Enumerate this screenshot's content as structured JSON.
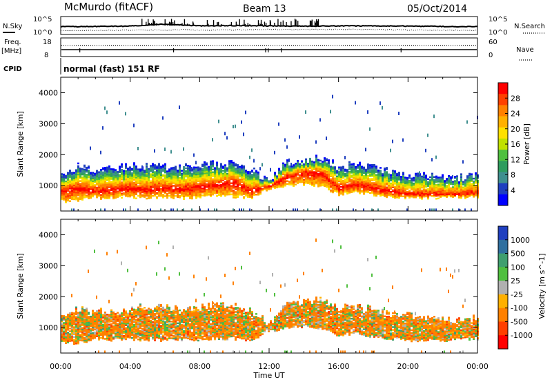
{
  "header": {
    "station": "McMurdo (fitACF)",
    "beam": "Beam 13",
    "date": "05/Oct/2014"
  },
  "noise_panel": {
    "left_label": "N.Sky",
    "right_label": "N.Search",
    "left_ticks": [
      "10^5",
      "10^0"
    ],
    "right_ticks": [
      "10^5",
      "10^0"
    ]
  },
  "freq_panel": {
    "left_label_1": "Freq.",
    "left_label_2": "[MHz]",
    "right_label": "Nave",
    "left_ticks": [
      "18",
      "8"
    ],
    "right_ticks": [
      "60",
      "0"
    ]
  },
  "cpid": {
    "label": "CPID",
    "value": "normal (fast) 151 RF"
  },
  "power_panel": {
    "ylabel": "Slant Range [km]",
    "cbar_label": "Power [dB]",
    "cbar_ticks": [
      "28",
      "24",
      "20",
      "16",
      "12",
      "8",
      "4"
    ],
    "cbar_colors": [
      "#ff0000",
      "#ff4000",
      "#ff8000",
      "#ffb000",
      "#ffe000",
      "#c0e000",
      "#4fbf3f",
      "#2e9c5e",
      "#3f8f8f",
      "#1f3fbf",
      "#0000ff"
    ]
  },
  "velocity_panel": {
    "ylabel": "Slant Range [km]",
    "cbar_label": "Velocity [m s^-1]",
    "cbar_ticks": [
      "1000",
      "500",
      "100",
      "25",
      "-25",
      "-100",
      "-500",
      "-1000"
    ],
    "cbar_colors": [
      "#1f3fbf",
      "#2f6f9f",
      "#3f9f6f",
      "#4fbf3f",
      "#b0b0b0",
      "#ffb000",
      "#ff8000",
      "#ff4000",
      "#ff0000"
    ]
  },
  "chart_data": [
    {
      "type": "line",
      "title": "McMurdo (fitACF)",
      "panel": "noise",
      "x": [
        0,
        2,
        4,
        5,
        6,
        7,
        8,
        10,
        12,
        14,
        16,
        18,
        20,
        22,
        24
      ],
      "series": [
        {
          "values": [
            2.2,
            2.3,
            2.4,
            2.8,
            3.1,
            2.8,
            2.5,
            2.6,
            2.5,
            2.4,
            2.5,
            2.5,
            2.4,
            2.3,
            2.2
          ]
        },
        {
          "values": [
            0.8,
            0.9,
            1.0,
            1.1,
            1.0,
            1.2,
            1.0,
            1.1,
            1.3,
            1.2,
            1.3,
            1.2,
            1.1,
            1.0,
            0.9
          ]
        }
      ],
      "ylim": [
        0,
        5
      ]
    },
    {
      "type": "heatmap",
      "panel": "power",
      "xlabel": "Time UT",
      "ylabel": "Slant Range [km]",
      "xlim": [
        0,
        24
      ],
      "ylim": [
        180,
        4500
      ],
      "x_ticks": [
        "00:00",
        "04:00",
        "08:00",
        "12:00",
        "16:00",
        "20:00",
        "00:00"
      ],
      "y_ticks": [
        1000,
        2000,
        3000,
        4000
      ],
      "colorbar": {
        "label": "Power [dB]",
        "ticks": [
          4,
          8,
          12,
          16,
          20,
          24,
          28
        ],
        "range": [
          0,
          30
        ]
      },
      "band": {
        "time_hr": [
          0,
          1,
          2,
          3,
          4,
          5,
          6,
          7,
          8,
          9,
          10,
          11,
          12,
          13,
          14,
          15,
          16,
          17,
          18,
          19,
          20,
          21,
          22,
          23,
          24
        ],
        "lower_km": [
          500,
          520,
          600,
          600,
          620,
          620,
          600,
          600,
          620,
          650,
          650,
          600,
          900,
          1000,
          1050,
          1000,
          700,
          800,
          700,
          650,
          600,
          600,
          600,
          620,
          650
        ],
        "upper_km": [
          1300,
          1600,
          1500,
          1550,
          1600,
          1650,
          1600,
          1600,
          1650,
          1700,
          1700,
          1500,
          1100,
          1700,
          1800,
          1900,
          1600,
          1700,
          1550,
          1450,
          1350,
          1300,
          1250,
          1250,
          1300
        ],
        "peak_km": [
          800,
          900,
          800,
          850,
          900,
          850,
          900,
          850,
          950,
          1000,
          1100,
          800,
          950,
          1250,
          1400,
          1400,
          900,
          1000,
          900,
          800,
          700,
          700,
          700,
          700,
          750
        ]
      }
    },
    {
      "type": "heatmap",
      "panel": "velocity",
      "xlabel": "Time UT",
      "ylabel": "Slant Range [km]",
      "xlim": [
        0,
        24
      ],
      "ylim": [
        180,
        4500
      ],
      "x_ticks": [
        "00:00",
        "04:00",
        "08:00",
        "12:00",
        "16:00",
        "20:00",
        "00:00"
      ],
      "y_ticks": [
        1000,
        2000,
        3000,
        4000
      ],
      "colorbar": {
        "label": "Velocity [m s^-1]",
        "ticks": [
          -1000,
          -500,
          -100,
          -25,
          25,
          100,
          500,
          1000
        ],
        "range": [
          -1200,
          1200
        ]
      },
      "band": {
        "time_hr": [
          0,
          1,
          2,
          3,
          4,
          5,
          6,
          7,
          8,
          9,
          10,
          11,
          12,
          13,
          14,
          15,
          16,
          17,
          18,
          19,
          20,
          21,
          22,
          23,
          24
        ],
        "lower_km": [
          500,
          520,
          600,
          600,
          620,
          620,
          600,
          600,
          620,
          650,
          650,
          600,
          900,
          1000,
          1050,
          1000,
          700,
          800,
          700,
          650,
          600,
          600,
          600,
          620,
          650
        ],
        "upper_km": [
          1300,
          1600,
          1500,
          1550,
          1600,
          1650,
          1600,
          1600,
          1650,
          1700,
          1700,
          1500,
          1100,
          1700,
          1800,
          1900,
          1600,
          1700,
          1550,
          1450,
          1350,
          1300,
          1250,
          1250,
          1300
        ]
      }
    }
  ]
}
